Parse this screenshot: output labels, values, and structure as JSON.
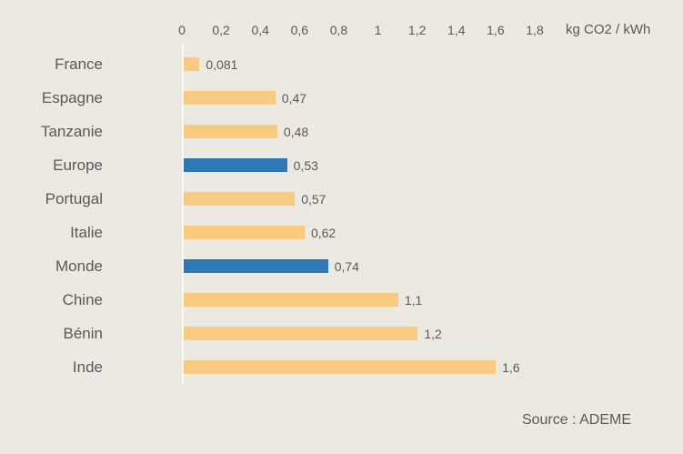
{
  "chart_data": {
    "type": "bar",
    "orientation": "horizontal",
    "categories": [
      "France",
      "Espagne",
      "Tanzanie",
      "Europe",
      "Portugal",
      "Italie",
      "Monde",
      "Chine",
      "Bénin",
      "Inde"
    ],
    "values": [
      0.081,
      0.47,
      0.48,
      0.53,
      0.57,
      0.62,
      0.74,
      1.1,
      1.2,
      1.6
    ],
    "value_labels": [
      "0,081",
      "0,47",
      "0,48",
      "0,53",
      "0,57",
      "0,62",
      "0,74",
      "1,1",
      "1,2",
      "1,6"
    ],
    "highlighted_categories": [
      "Europe",
      "Monde"
    ],
    "axis": {
      "position": "top",
      "min": 0,
      "max": 1.8,
      "tick_interval": 0.2,
      "tick_labels": [
        "0",
        "0,2",
        "0,4",
        "0,6",
        "0,8",
        "1",
        "1,2",
        "1,4",
        "1,6",
        "1,8"
      ],
      "title": "kg CO2 / kWh"
    },
    "colors": {
      "bar": "#F8CA82",
      "highlight": "#2E78B7",
      "background": "#ECE9E2",
      "text": "#595959",
      "axis_line": "#FBFAF5"
    },
    "grid": false,
    "legend": false,
    "source": "Source : ADEME"
  }
}
